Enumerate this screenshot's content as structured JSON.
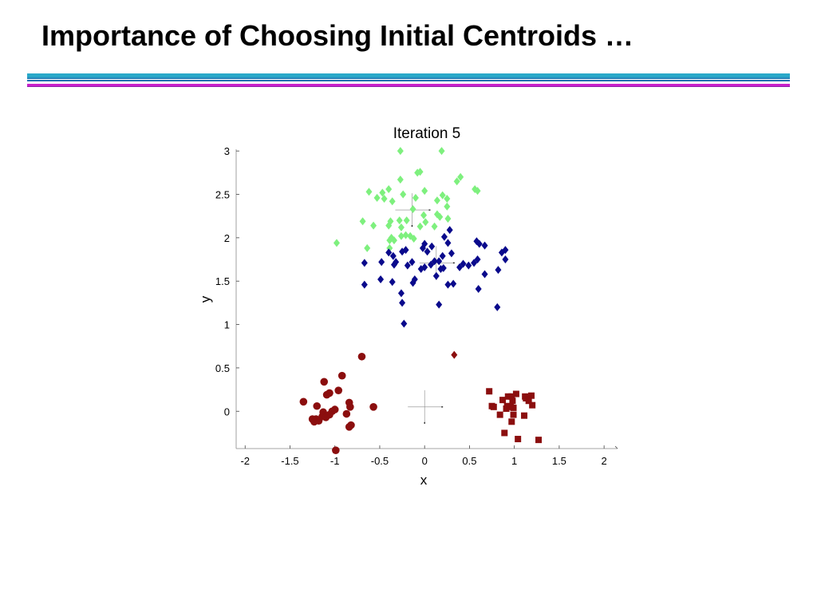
{
  "slide": {
    "title": "Importance of Choosing Initial Centroids …"
  },
  "theme": {
    "rule_top": "#2aa9c9",
    "rule_mid": "#1f6fb0",
    "rule_bottom": "#cc22cc",
    "rule_bottom_edge": "#7a1fa0"
  },
  "chart_data": {
    "type": "scatter",
    "title": "Iteration 5",
    "xlabel": "x",
    "ylabel": "y",
    "xlim": [
      -2.1,
      2.15
    ],
    "ylim": [
      -0.43,
      3.02
    ],
    "xticks": [
      "-2",
      "-1.5",
      "-1",
      "-0.5",
      "0",
      "0.5",
      "1",
      "1.5",
      "2"
    ],
    "xtick_values": [
      -2,
      -1.5,
      -1,
      -0.5,
      0,
      0.5,
      1,
      1.5,
      2
    ],
    "yticks": [
      "0",
      "0.5",
      "1",
      "1.5",
      "2",
      "2.5",
      "3"
    ],
    "ytick_values": [
      0,
      0.5,
      1,
      1.5,
      2,
      2.5,
      3
    ],
    "grid": false,
    "series": [
      {
        "marker": "diamond",
        "color": "#7ef07e",
        "points": [
          [
            -0.27,
            3.0
          ],
          [
            0.19,
            3.0
          ],
          [
            -0.05,
            2.76
          ],
          [
            -0.08,
            2.75
          ],
          [
            0.4,
            2.7
          ],
          [
            -0.27,
            2.67
          ],
          [
            0.36,
            2.65
          ],
          [
            0.56,
            2.56
          ],
          [
            0.59,
            2.54
          ],
          [
            -0.4,
            2.56
          ],
          [
            -0.62,
            2.53
          ],
          [
            -0.47,
            2.52
          ],
          [
            0.0,
            2.54
          ],
          [
            -0.24,
            2.5
          ],
          [
            0.2,
            2.49
          ],
          [
            -0.53,
            2.46
          ],
          [
            -0.45,
            2.45
          ],
          [
            -0.1,
            2.46
          ],
          [
            0.25,
            2.45
          ],
          [
            0.14,
            2.43
          ],
          [
            -0.36,
            2.42
          ],
          [
            0.25,
            2.36
          ],
          [
            -0.13,
            2.33
          ],
          [
            -0.01,
            2.26
          ],
          [
            0.14,
            2.27
          ],
          [
            0.17,
            2.24
          ],
          [
            0.26,
            2.22
          ],
          [
            -0.69,
            2.19
          ],
          [
            -0.38,
            2.19
          ],
          [
            -0.2,
            2.2
          ],
          [
            -0.28,
            2.2
          ],
          [
            -0.4,
            2.14
          ],
          [
            -0.57,
            2.14
          ],
          [
            -0.26,
            2.12
          ],
          [
            0.01,
            2.18
          ],
          [
            -0.05,
            2.13
          ],
          [
            0.11,
            2.13
          ],
          [
            -0.21,
            2.03
          ],
          [
            -0.26,
            2.02
          ],
          [
            -0.37,
            2.0
          ],
          [
            -0.34,
            1.97
          ],
          [
            -0.39,
            1.97
          ],
          [
            -0.98,
            1.94
          ],
          [
            -0.12,
            1.99
          ],
          [
            -0.16,
            2.02
          ],
          [
            -0.64,
            1.88
          ],
          [
            -0.39,
            1.88
          ]
        ]
      },
      {
        "marker": "diamond",
        "color": "#0a0a8c",
        "points": [
          [
            0.28,
            2.09
          ],
          [
            0.22,
            2.01
          ],
          [
            0.58,
            1.96
          ],
          [
            0.67,
            1.91
          ],
          [
            0.61,
            1.93
          ],
          [
            0.0,
            1.93
          ],
          [
            0.08,
            1.9
          ],
          [
            0.26,
            1.94
          ],
          [
            -0.02,
            1.88
          ],
          [
            -0.21,
            1.86
          ],
          [
            -0.25,
            1.84
          ],
          [
            0.03,
            1.84
          ],
          [
            0.9,
            1.86
          ],
          [
            0.86,
            1.83
          ],
          [
            -0.4,
            1.83
          ],
          [
            -0.35,
            1.79
          ],
          [
            0.2,
            1.79
          ],
          [
            0.3,
            1.82
          ],
          [
            -0.67,
            1.71
          ],
          [
            -0.48,
            1.72
          ],
          [
            -0.32,
            1.72
          ],
          [
            -0.34,
            1.69
          ],
          [
            -0.14,
            1.72
          ],
          [
            -0.19,
            1.68
          ],
          [
            0.11,
            1.73
          ],
          [
            0.16,
            1.73
          ],
          [
            0.59,
            1.75
          ],
          [
            0.9,
            1.75
          ],
          [
            0.43,
            1.7
          ],
          [
            0.49,
            1.68
          ],
          [
            0.55,
            1.71
          ],
          [
            0.0,
            1.66
          ],
          [
            0.07,
            1.69
          ],
          [
            0.21,
            1.65
          ],
          [
            0.39,
            1.66
          ],
          [
            0.82,
            1.63
          ],
          [
            -0.04,
            1.64
          ],
          [
            0.18,
            1.64
          ],
          [
            0.67,
            1.58
          ],
          [
            0.13,
            1.56
          ],
          [
            -0.49,
            1.52
          ],
          [
            -0.11,
            1.52
          ],
          [
            -0.36,
            1.49
          ],
          [
            0.32,
            1.47
          ],
          [
            0.26,
            1.46
          ],
          [
            -0.67,
            1.46
          ],
          [
            -0.13,
            1.48
          ],
          [
            0.6,
            1.41
          ],
          [
            -0.26,
            1.36
          ],
          [
            0.81,
            1.2
          ],
          [
            -0.25,
            1.25
          ],
          [
            0.16,
            1.23
          ],
          [
            -0.23,
            1.01
          ]
        ]
      },
      {
        "marker": "diamond",
        "color": "#8b0e0e",
        "points": [
          [
            0.33,
            0.65
          ]
        ]
      },
      {
        "marker": "circle",
        "color": "#8b0e0e",
        "points": [
          [
            -0.7,
            0.63
          ],
          [
            -0.92,
            0.41
          ],
          [
            -1.12,
            0.34
          ],
          [
            -0.96,
            0.24
          ],
          [
            -1.06,
            0.21
          ],
          [
            -1.09,
            0.19
          ],
          [
            -1.35,
            0.11
          ],
          [
            -0.84,
            0.1
          ],
          [
            -1.2,
            0.06
          ],
          [
            -0.83,
            0.05
          ],
          [
            -0.57,
            0.05
          ],
          [
            -1.0,
            0.02
          ],
          [
            -1.03,
            0.0
          ],
          [
            -1.13,
            -0.01
          ],
          [
            -0.87,
            -0.03
          ],
          [
            -1.06,
            -0.04
          ],
          [
            -1.14,
            -0.06
          ],
          [
            -1.21,
            -0.09
          ],
          [
            -1.1,
            -0.07
          ],
          [
            -1.25,
            -0.09
          ],
          [
            -1.18,
            -0.11
          ],
          [
            -1.23,
            -0.12
          ],
          [
            -0.82,
            -0.16
          ],
          [
            -0.84,
            -0.18
          ],
          [
            -0.99,
            -0.45
          ]
        ]
      },
      {
        "marker": "square",
        "color": "#8b0e0e",
        "points": [
          [
            0.72,
            0.23
          ],
          [
            0.93,
            0.17
          ],
          [
            1.02,
            0.2
          ],
          [
            1.12,
            0.17
          ],
          [
            1.19,
            0.18
          ],
          [
            0.97,
            0.17
          ],
          [
            0.87,
            0.13
          ],
          [
            0.98,
            0.12
          ],
          [
            1.13,
            0.15
          ],
          [
            1.16,
            0.12
          ],
          [
            0.75,
            0.06
          ],
          [
            0.92,
            0.06
          ],
          [
            1.2,
            0.07
          ],
          [
            0.77,
            0.05
          ],
          [
            0.91,
            0.03
          ],
          [
            0.96,
            0.05
          ],
          [
            0.99,
            0.04
          ],
          [
            0.84,
            -0.04
          ],
          [
            0.99,
            -0.04
          ],
          [
            1.11,
            -0.05
          ],
          [
            0.97,
            -0.12
          ],
          [
            0.89,
            -0.25
          ],
          [
            1.04,
            -0.32
          ],
          [
            1.27,
            -0.33
          ]
        ]
      }
    ],
    "centroids": [
      [
        -0.14,
        2.32
      ],
      [
        0.13,
        1.71
      ],
      [
        0.0,
        0.05
      ]
    ]
  }
}
